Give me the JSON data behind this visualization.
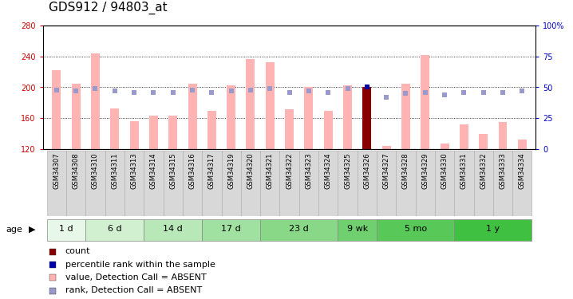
{
  "title": "GDS912 / 94803_at",
  "samples": [
    "GSM34307",
    "GSM34308",
    "GSM34310",
    "GSM34311",
    "GSM34313",
    "GSM34314",
    "GSM34315",
    "GSM34316",
    "GSM34317",
    "GSM34319",
    "GSM34320",
    "GSM34321",
    "GSM34322",
    "GSM34323",
    "GSM34324",
    "GSM34325",
    "GSM34326",
    "GSM34327",
    "GSM34328",
    "GSM34329",
    "GSM34330",
    "GSM34331",
    "GSM34332",
    "GSM34333",
    "GSM34334"
  ],
  "values": [
    222,
    205,
    244,
    173,
    156,
    163,
    163,
    205,
    170,
    203,
    237,
    232,
    172,
    200,
    170,
    203,
    200,
    124,
    205,
    242,
    127,
    152,
    140,
    155,
    132
  ],
  "ranks": [
    48,
    47,
    49,
    47,
    46,
    46,
    46,
    48,
    46,
    47,
    48,
    49,
    46,
    47,
    46,
    49,
    50,
    42,
    45,
    46,
    44,
    46,
    46,
    46,
    47
  ],
  "is_count": [
    false,
    false,
    false,
    false,
    false,
    false,
    false,
    false,
    false,
    false,
    false,
    false,
    false,
    false,
    false,
    false,
    true,
    false,
    false,
    false,
    false,
    false,
    false,
    false,
    false
  ],
  "age_groups": [
    {
      "label": "1 d",
      "start": 0,
      "end": 2
    },
    {
      "label": "6 d",
      "start": 2,
      "end": 5
    },
    {
      "label": "14 d",
      "start": 5,
      "end": 8
    },
    {
      "label": "17 d",
      "start": 8,
      "end": 11
    },
    {
      "label": "23 d",
      "start": 11,
      "end": 15
    },
    {
      "label": "9 wk",
      "start": 15,
      "end": 17
    },
    {
      "label": "5 mo",
      "start": 17,
      "end": 21
    },
    {
      "label": "1 y",
      "start": 21,
      "end": 25
    }
  ],
  "age_colors": [
    "#e8f8e8",
    "#d0f0d0",
    "#b8e8b8",
    "#a0e0a0",
    "#88d888",
    "#70d070",
    "#58c858",
    "#40c040"
  ],
  "ylim_left": [
    120,
    280
  ],
  "ylim_right": [
    0,
    100
  ],
  "yticks_left": [
    120,
    160,
    200,
    240,
    280
  ],
  "yticks_right": [
    0,
    25,
    50,
    75,
    100
  ],
  "bar_color_absent": "#ffb3b3",
  "bar_color_count": "#880000",
  "rank_color_absent": "#9999cc",
  "rank_color_count": "#0000aa",
  "axis_color_left": "#cc0000",
  "axis_color_right": "#0000cc",
  "title_fontsize": 11,
  "tick_fontsize": 7,
  "sample_fontsize": 6,
  "legend_fontsize": 8,
  "bar_width": 0.45
}
